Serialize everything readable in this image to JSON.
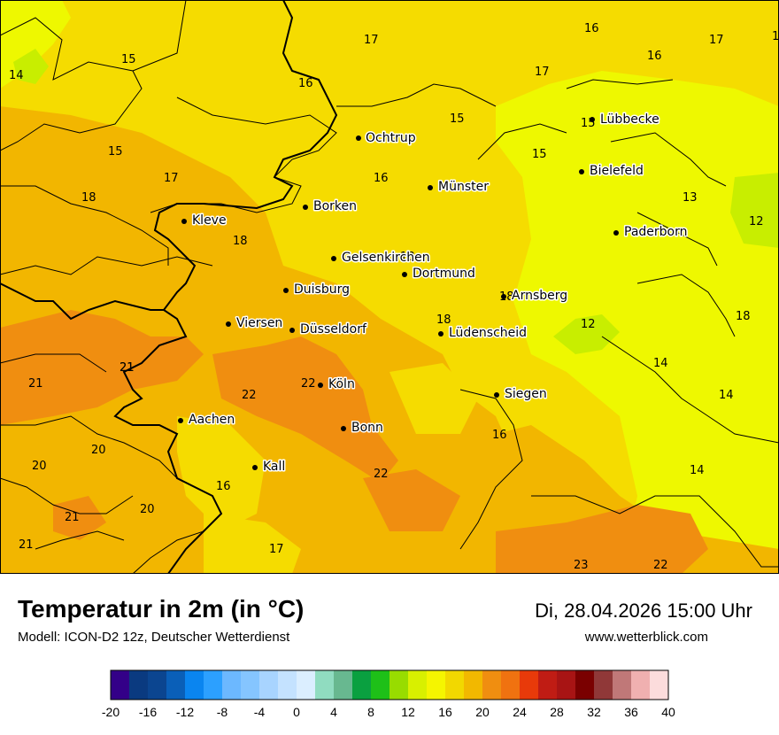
{
  "map": {
    "colors": {
      "c12": "#c8ee00",
      "c14": "#eef800",
      "c16": "#f5dc00",
      "c18": "#f2b600",
      "c20": "#f08e10",
      "c22": "#f0a000",
      "border": "#000000"
    },
    "cities": [
      {
        "name": "Ochtrup"
      },
      {
        "name": "Lübbecke"
      },
      {
        "name": "Bielefeld"
      },
      {
        "name": "Münster"
      },
      {
        "name": "Borken"
      },
      {
        "name": "Kleve"
      },
      {
        "name": "Paderborn"
      },
      {
        "name": "Gelsenkirchen"
      },
      {
        "name": "Dortmund"
      },
      {
        "name": "Duisburg"
      },
      {
        "name": "Arnsberg"
      },
      {
        "name": "Viersen"
      },
      {
        "name": "Düsseldorf"
      },
      {
        "name": "Lüdenscheid"
      },
      {
        "name": "Köln"
      },
      {
        "name": "Siegen"
      },
      {
        "name": "Aachen"
      },
      {
        "name": "Bonn"
      },
      {
        "name": "Kall"
      }
    ],
    "temperature_values": [
      "17",
      "16",
      "17",
      "1",
      "15",
      "14",
      "16",
      "17",
      "16",
      "15",
      "15",
      "15",
      "15",
      "17",
      "16",
      "18",
      "13",
      "12",
      "18",
      "18",
      "18",
      "18",
      "18",
      "12",
      "21",
      "21",
      "22",
      "22",
      "14",
      "14",
      "21",
      "20",
      "16",
      "20",
      "22",
      "14",
      "16",
      "21",
      "20",
      "21",
      "17",
      "23",
      "22"
    ]
  },
  "footer": {
    "title": "Temperatur in 2m (in °C)",
    "model": "Modell: ICON-D2 12z, Deutscher Wetterdienst",
    "datetime": "Di, 28.04.2026 15:00 Uhr",
    "website": "www.wetterblick.com"
  },
  "legend": {
    "colors": [
      "#330088",
      "#0a3a80",
      "#0b4590",
      "#0a5fb8",
      "#0a85f0",
      "#2ca0ff",
      "#6cb8ff",
      "#85c5ff",
      "#a8d4ff",
      "#c4e2ff",
      "#dbeeff",
      "#90dcc0",
      "#68b890",
      "#0aa040",
      "#1ec018",
      "#98dc00",
      "#d8f000",
      "#f5f500",
      "#f2d800",
      "#f2b800",
      "#f08e10",
      "#f07210",
      "#e83a0a",
      "#c01c14",
      "#a81414",
      "#7a0000",
      "#903838",
      "#c07878",
      "#f0b0b0",
      "#fcdcdc"
    ],
    "tick_labels": [
      "-20",
      "-16",
      "-12",
      "-8",
      "-4",
      "0",
      "4",
      "8",
      "12",
      "16",
      "20",
      "24",
      "28",
      "32",
      "36",
      "40"
    ]
  }
}
